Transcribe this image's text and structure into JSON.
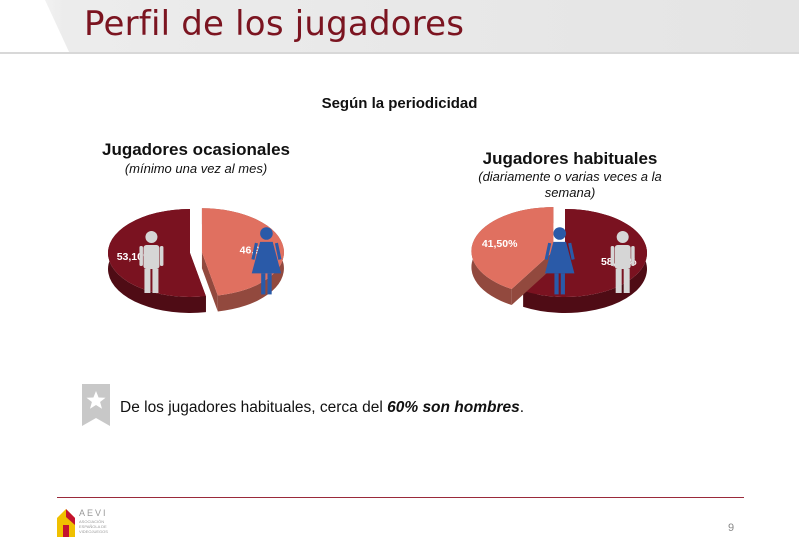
{
  "slide": {
    "title": "Perfil de los jugadores",
    "section_title": "Según la periodicidad",
    "page_number": "9"
  },
  "charts": [
    {
      "title": "Jugadores ocasionales",
      "subtitle": "(mínimo una vez al mes)"
    },
    {
      "title": "Jugadores habituales",
      "subtitle_line1": "(diariamente o varias veces a la",
      "subtitle_line2": "semana)"
    }
  ],
  "chart_data": [
    {
      "type": "pie",
      "title": "Jugadores ocasionales",
      "subtitle": "(mínimo una vez al mes)",
      "categories": [
        "female-icon",
        "male-icon"
      ],
      "values": [
        46.9,
        53.1
      ],
      "labels": [
        "46,90%",
        "53,10%"
      ],
      "colors": [
        "#e07060",
        "#7a1220"
      ]
    },
    {
      "type": "pie",
      "title": "Jugadores habituales",
      "subtitle": "(diariamente o varias veces a la semana)",
      "categories": [
        "male-icon",
        "female-icon"
      ],
      "values": [
        58.5,
        41.5
      ],
      "labels": [
        "58,50%",
        "41,50%"
      ],
      "colors": [
        "#7a1220",
        "#e07060"
      ]
    }
  ],
  "note": {
    "text_before": "De los jugadores habituales, cerca del ",
    "emphasis": "60% son hombres",
    "text_after": "."
  },
  "footer": {
    "logo_text": "AEVI",
    "logo_subtext_1": "ASOCIACIÓN",
    "logo_subtext_2": "ESPAÑOLA DE",
    "logo_subtext_3": "VIDEOJUEGOS"
  },
  "colors": {
    "title": "#7b1420",
    "male_slice": "#7a1220",
    "female_slice": "#e07060",
    "female_icon": "#2a5aa8",
    "male_icon": "#d6d6d6"
  }
}
